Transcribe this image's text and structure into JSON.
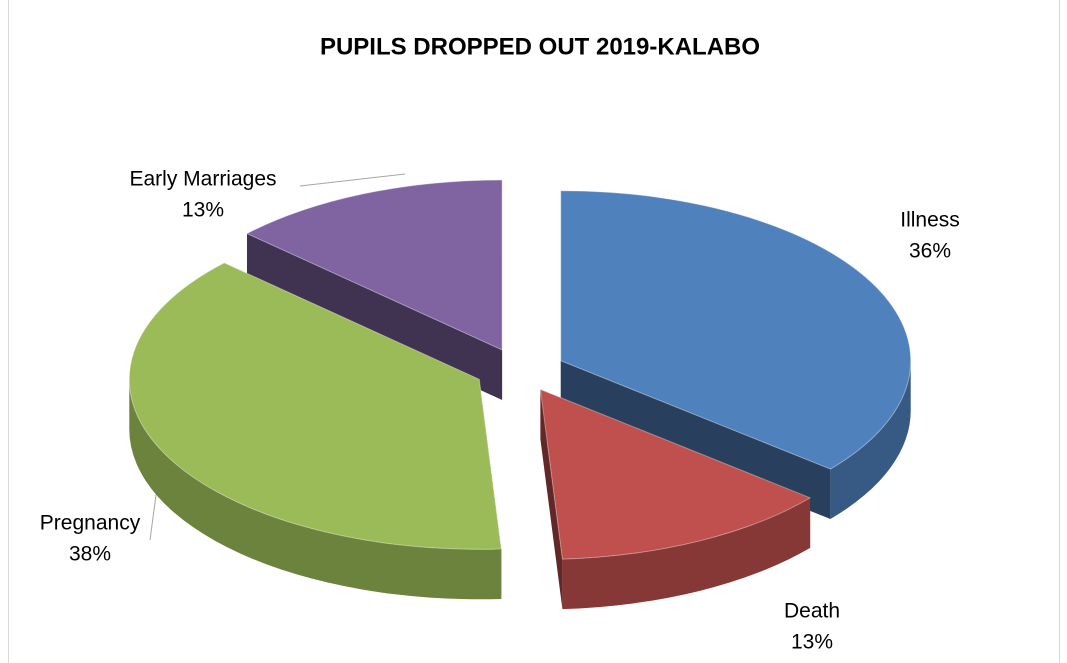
{
  "chart_data": {
    "type": "pie",
    "title": "PUPILS DROPPED OUT 2019-KALABO",
    "categories": [
      "Illness",
      "Death",
      "Pregnancy",
      "Early Marriages"
    ],
    "values": [
      36,
      13,
      38,
      13
    ],
    "value_labels": [
      "36%",
      "13%",
      "38%",
      "13%"
    ],
    "colors": [
      "#4f81bd",
      "#c0504d",
      "#9bbb59",
      "#8064a2"
    ]
  }
}
